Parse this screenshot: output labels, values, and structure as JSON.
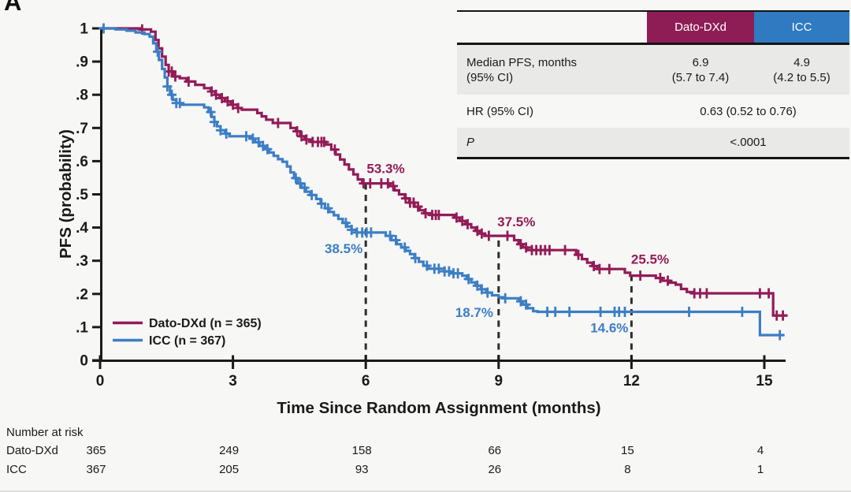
{
  "panel_label": "A",
  "colors": {
    "dato": "#931b57",
    "icc": "#3c7ec6",
    "axis": "#1a1a1a",
    "dashed_line": "#2e2e2e",
    "table_header_dato": "#8e1d56",
    "table_header_icc": "#2f7ac0",
    "table_row_gray": "#e9e9e7",
    "background": "#f7f7f5"
  },
  "summary_table": {
    "header": {
      "dato": "Dato-DXd",
      "icc": "ICC"
    },
    "row_median": {
      "label1": "Median PFS, months",
      "label2": "(95% CI)",
      "dato1": "6.9",
      "dato2": "(5.7 to 7.4)",
      "icc1": "4.9",
      "icc2": "(4.2 to 5.5)"
    },
    "row_hr": {
      "label": "HR (95% CI)",
      "value": "0.63 (0.52 to 0.76)"
    },
    "row_p": {
      "label": "P",
      "value": "<.0001"
    }
  },
  "risk_table": {
    "title": "Number at risk",
    "time_points": [
      0,
      3,
      6,
      9,
      12,
      15
    ],
    "rows": [
      {
        "label": "Dato-DXd",
        "values": [
          "365",
          "249",
          "158",
          "66",
          "15",
          "4"
        ]
      },
      {
        "label": "ICC",
        "values": [
          "367",
          "205",
          "93",
          "26",
          "8",
          "1"
        ]
      }
    ]
  },
  "chart_data": {
    "type": "line",
    "subtype": "kaplan_meier_step",
    "title": "",
    "xlabel": "Time Since Random Assignment (months)",
    "ylabel": "PFS (probability)",
    "xlim": [
      0,
      15.6
    ],
    "ylim": [
      0,
      1
    ],
    "xticks": [
      0,
      3,
      6,
      9,
      12,
      15
    ],
    "ytick_labels": [
      "0",
      ".1",
      ".2",
      ".3",
      ".4",
      ".5",
      ".6",
      ".7",
      ".8",
      ".9",
      "1"
    ],
    "grid": false,
    "legend_position": "lower-left",
    "dashed_reference_lines": [
      {
        "x": 6,
        "y_top": 0.533
      },
      {
        "x": 9,
        "y_top": 0.375
      },
      {
        "x": 12,
        "y_top": 0.255
      }
    ],
    "series": [
      {
        "key": "dato",
        "name": "Dato-DXd (n = 365)",
        "color": "#931b57",
        "end_x": 15.52,
        "steps": [
          [
            0,
            1.0
          ],
          [
            0.9,
            0.997
          ],
          [
            1.15,
            0.99
          ],
          [
            1.25,
            0.965
          ],
          [
            1.32,
            0.94
          ],
          [
            1.4,
            0.915
          ],
          [
            1.48,
            0.89
          ],
          [
            1.55,
            0.87
          ],
          [
            1.65,
            0.855
          ],
          [
            1.8,
            0.85
          ],
          [
            1.95,
            0.84
          ],
          [
            2.15,
            0.83
          ],
          [
            2.35,
            0.82
          ],
          [
            2.5,
            0.81
          ],
          [
            2.6,
            0.8
          ],
          [
            2.7,
            0.79
          ],
          [
            2.82,
            0.78
          ],
          [
            2.95,
            0.77
          ],
          [
            3.1,
            0.76
          ],
          [
            3.2,
            0.755
          ],
          [
            3.55,
            0.745
          ],
          [
            3.65,
            0.735
          ],
          [
            3.75,
            0.725
          ],
          [
            3.9,
            0.715
          ],
          [
            4.3,
            0.7
          ],
          [
            4.42,
            0.69
          ],
          [
            4.52,
            0.675
          ],
          [
            4.62,
            0.665
          ],
          [
            4.78,
            0.658
          ],
          [
            5.1,
            0.65
          ],
          [
            5.22,
            0.635
          ],
          [
            5.32,
            0.62
          ],
          [
            5.42,
            0.605
          ],
          [
            5.52,
            0.59
          ],
          [
            5.62,
            0.575
          ],
          [
            5.72,
            0.56
          ],
          [
            5.82,
            0.545
          ],
          [
            5.92,
            0.533
          ],
          [
            6.55,
            0.525
          ],
          [
            6.65,
            0.512
          ],
          [
            6.75,
            0.5
          ],
          [
            6.88,
            0.488
          ],
          [
            6.98,
            0.475
          ],
          [
            7.1,
            0.463
          ],
          [
            7.22,
            0.452
          ],
          [
            7.32,
            0.443
          ],
          [
            7.45,
            0.438
          ],
          [
            8.0,
            0.43
          ],
          [
            8.12,
            0.42
          ],
          [
            8.25,
            0.41
          ],
          [
            8.38,
            0.4
          ],
          [
            8.48,
            0.39
          ],
          [
            8.58,
            0.382
          ],
          [
            8.68,
            0.375
          ],
          [
            9.35,
            0.362
          ],
          [
            9.45,
            0.35
          ],
          [
            9.55,
            0.34
          ],
          [
            9.65,
            0.332
          ],
          [
            10.75,
            0.318
          ],
          [
            10.88,
            0.305
          ],
          [
            11.0,
            0.294
          ],
          [
            11.12,
            0.284
          ],
          [
            11.22,
            0.275
          ],
          [
            11.85,
            0.264
          ],
          [
            11.97,
            0.255
          ],
          [
            12.55,
            0.248
          ],
          [
            12.7,
            0.24
          ],
          [
            12.85,
            0.234
          ],
          [
            13.0,
            0.228
          ],
          [
            13.12,
            0.215
          ],
          [
            13.25,
            0.206
          ],
          [
            13.38,
            0.202
          ],
          [
            15.2,
            0.135
          ]
        ],
        "censor_x": [
          0.95,
          1.55,
          1.62,
          1.7,
          2.0,
          2.52,
          2.62,
          2.75,
          2.88,
          3.0,
          3.12,
          4.02,
          4.45,
          4.55,
          4.66,
          4.8,
          4.92,
          5.0,
          5.06,
          5.3,
          5.95,
          6.1,
          6.35,
          6.5,
          6.62,
          6.9,
          7.0,
          7.08,
          7.18,
          7.35,
          7.5,
          7.58,
          7.65,
          8.05,
          8.18,
          8.3,
          8.52,
          8.62,
          8.78,
          9.2,
          9.5,
          9.62,
          9.75,
          9.85,
          9.95,
          10.05,
          10.15,
          10.5,
          10.8,
          11.15,
          11.28,
          11.5,
          12.2,
          12.65,
          12.82,
          13.42,
          13.55,
          13.7,
          14.9,
          15.1,
          15.28,
          15.42
        ]
      },
      {
        "key": "icc",
        "name": "ICC (n = 367)",
        "color": "#3c7ec6",
        "end_x": 15.45,
        "steps": [
          [
            0,
            1.0
          ],
          [
            0.35,
            0.997
          ],
          [
            0.6,
            0.993
          ],
          [
            0.8,
            0.988
          ],
          [
            1.0,
            0.983
          ],
          [
            1.12,
            0.975
          ],
          [
            1.2,
            0.955
          ],
          [
            1.27,
            0.93
          ],
          [
            1.33,
            0.905
          ],
          [
            1.4,
            0.878
          ],
          [
            1.46,
            0.852
          ],
          [
            1.52,
            0.825
          ],
          [
            1.58,
            0.8
          ],
          [
            1.64,
            0.785
          ],
          [
            1.72,
            0.775
          ],
          [
            1.82,
            0.77
          ],
          [
            2.35,
            0.762
          ],
          [
            2.45,
            0.748
          ],
          [
            2.52,
            0.733
          ],
          [
            2.58,
            0.718
          ],
          [
            2.64,
            0.705
          ],
          [
            2.72,
            0.693
          ],
          [
            2.82,
            0.683
          ],
          [
            2.92,
            0.675
          ],
          [
            3.4,
            0.668
          ],
          [
            3.5,
            0.657
          ],
          [
            3.6,
            0.646
          ],
          [
            3.72,
            0.636
          ],
          [
            3.82,
            0.626
          ],
          [
            3.92,
            0.616
          ],
          [
            4.02,
            0.606
          ],
          [
            4.12,
            0.598
          ],
          [
            4.22,
            0.584
          ],
          [
            4.3,
            0.566
          ],
          [
            4.38,
            0.549
          ],
          [
            4.46,
            0.533
          ],
          [
            4.55,
            0.52
          ],
          [
            4.65,
            0.508
          ],
          [
            4.75,
            0.498
          ],
          [
            4.88,
            0.486
          ],
          [
            4.98,
            0.472
          ],
          [
            5.08,
            0.458
          ],
          [
            5.18,
            0.447
          ],
          [
            5.28,
            0.437
          ],
          [
            5.38,
            0.426
          ],
          [
            5.48,
            0.414
          ],
          [
            5.58,
            0.403
          ],
          [
            5.68,
            0.393
          ],
          [
            5.78,
            0.385
          ],
          [
            6.45,
            0.375
          ],
          [
            6.58,
            0.362
          ],
          [
            6.7,
            0.35
          ],
          [
            6.8,
            0.34
          ],
          [
            6.9,
            0.33
          ],
          [
            7.0,
            0.32
          ],
          [
            7.1,
            0.308
          ],
          [
            7.2,
            0.297
          ],
          [
            7.3,
            0.285
          ],
          [
            7.42,
            0.276
          ],
          [
            7.78,
            0.268
          ],
          [
            7.9,
            0.262
          ],
          [
            8.18,
            0.255
          ],
          [
            8.28,
            0.245
          ],
          [
            8.38,
            0.235
          ],
          [
            8.48,
            0.225
          ],
          [
            8.6,
            0.214
          ],
          [
            8.72,
            0.204
          ],
          [
            8.85,
            0.196
          ],
          [
            9.0,
            0.19
          ],
          [
            9.1,
            0.187
          ],
          [
            9.45,
            0.178
          ],
          [
            9.55,
            0.168
          ],
          [
            9.65,
            0.157
          ],
          [
            9.78,
            0.148
          ],
          [
            9.88,
            0.146
          ],
          [
            14.9,
            0.076
          ]
        ],
        "censor_x": [
          0.08,
          1.3,
          1.52,
          1.62,
          1.72,
          1.8,
          2.5,
          2.58,
          2.72,
          2.85,
          3.3,
          3.45,
          3.58,
          3.68,
          3.78,
          4.42,
          4.52,
          4.62,
          4.78,
          5.0,
          5.15,
          5.55,
          5.68,
          5.8,
          5.92,
          6.02,
          6.12,
          6.55,
          6.68,
          6.88,
          7.12,
          7.38,
          7.55,
          7.65,
          7.78,
          7.88,
          7.98,
          8.08,
          8.32,
          8.52,
          8.62,
          8.75,
          9.15,
          9.5,
          9.62,
          10.1,
          10.28,
          10.6,
          11.3,
          11.62,
          11.72,
          11.85,
          13.3,
          14.5,
          15.35
        ]
      }
    ],
    "annotations": [
      {
        "text": "53.3%",
        "x": 6.45,
        "y": 0.578,
        "series": "dato"
      },
      {
        "text": "38.5%",
        "x": 5.5,
        "y": 0.337,
        "series": "icc"
      },
      {
        "text": "37.5%",
        "x": 9.4,
        "y": 0.418,
        "series": "dato"
      },
      {
        "text": "18.7%",
        "x": 8.45,
        "y": 0.145,
        "series": "icc"
      },
      {
        "text": "25.5%",
        "x": 12.42,
        "y": 0.305,
        "series": "dato"
      },
      {
        "text": "14.6%",
        "x": 11.5,
        "y": 0.098,
        "series": "icc"
      }
    ]
  }
}
